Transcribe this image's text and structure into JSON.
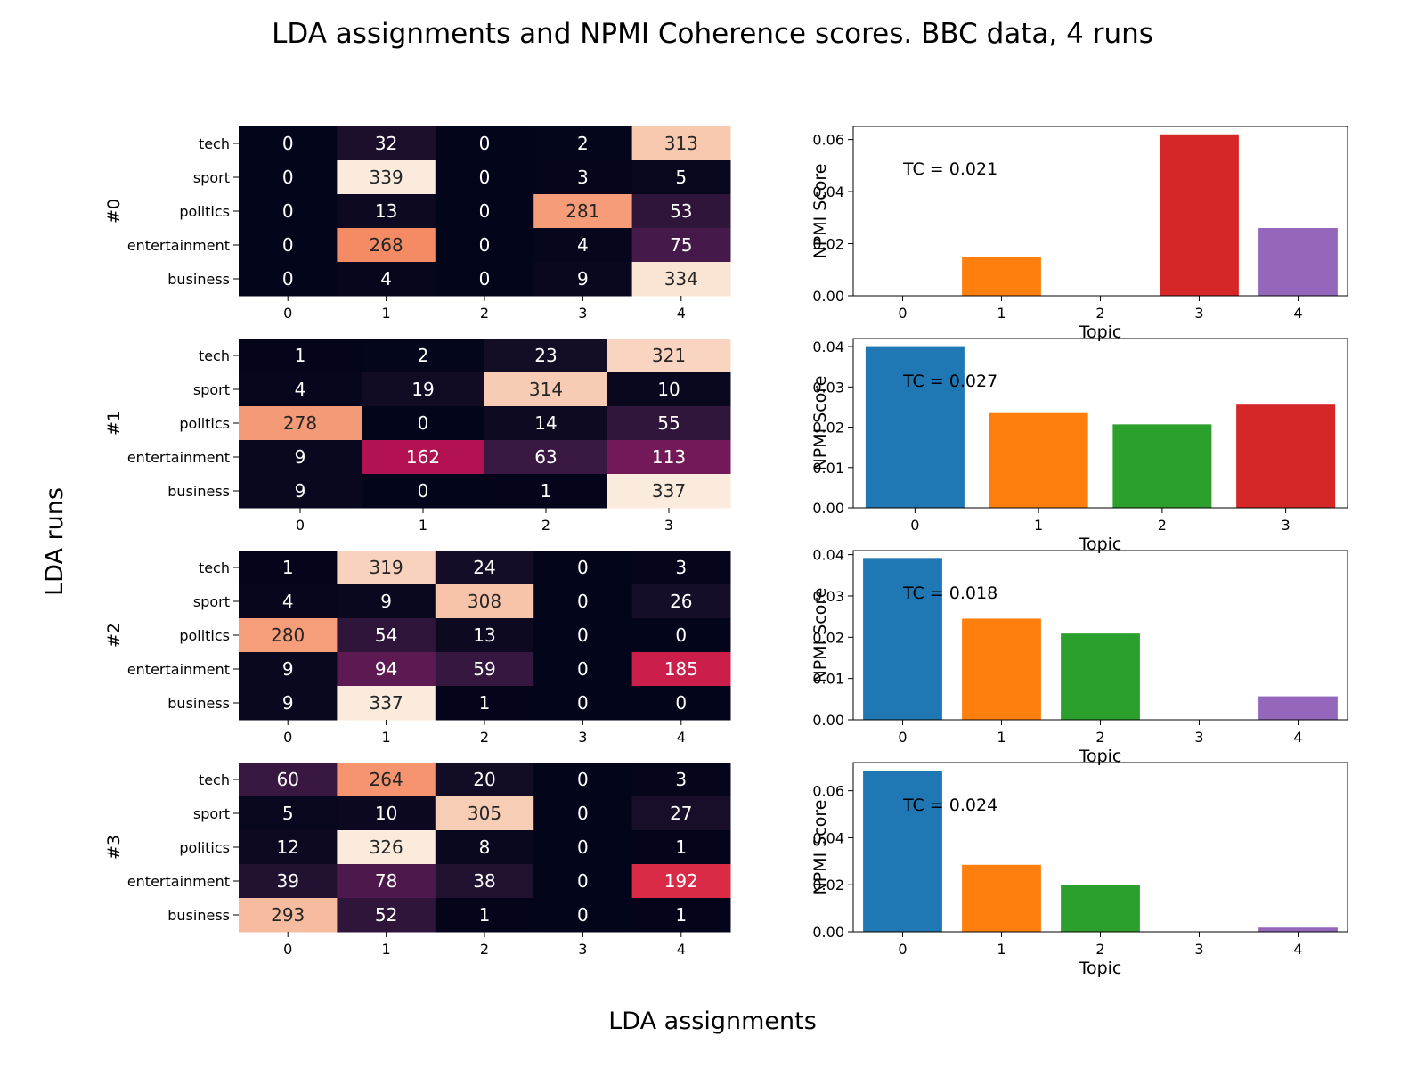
{
  "figure": {
    "title": "LDA assignments and NPMI Coherence scores. BBC data, 4 runs",
    "ylabel": "LDA runs",
    "xlabel": "LDA assignments"
  },
  "chart_data": [
    {
      "type": "heatmap",
      "run_label": "#0",
      "rows": [
        "tech",
        "sport",
        "politics",
        "entertainment",
        "business"
      ],
      "cols": [
        "0",
        "1",
        "2",
        "3",
        "4"
      ],
      "values": [
        [
          0,
          32,
          0,
          2,
          313
        ],
        [
          0,
          339,
          0,
          3,
          5
        ],
        [
          0,
          13,
          0,
          281,
          53
        ],
        [
          0,
          268,
          0,
          4,
          75
        ],
        [
          0,
          4,
          0,
          9,
          334
        ]
      ],
      "colormap": "rocket"
    },
    {
      "type": "bar",
      "categories": [
        "0",
        "1",
        "2",
        "3",
        "4"
      ],
      "values": [
        0.0,
        0.015,
        0.0,
        0.062,
        0.026
      ],
      "xlabel": "Topic",
      "ylabel": "NPMI Score",
      "ylim": [
        0,
        0.065
      ],
      "yticks": [
        "0.00",
        "0.02",
        "0.04",
        "0.06"
      ],
      "annotation": "TC = 0.021",
      "colors": [
        "#1f77b4",
        "#ff7f0e",
        "#2ca02c",
        "#d62728",
        "#9467bd"
      ]
    },
    {
      "type": "heatmap",
      "run_label": "#1",
      "rows": [
        "tech",
        "sport",
        "politics",
        "entertainment",
        "business"
      ],
      "cols": [
        "0",
        "1",
        "2",
        "3"
      ],
      "values": [
        [
          1,
          2,
          23,
          321
        ],
        [
          4,
          19,
          314,
          10
        ],
        [
          278,
          0,
          14,
          55
        ],
        [
          9,
          162,
          63,
          113
        ],
        [
          9,
          0,
          1,
          337
        ]
      ],
      "colormap": "rocket"
    },
    {
      "type": "bar",
      "categories": [
        "0",
        "1",
        "2",
        "3"
      ],
      "values": [
        0.0401,
        0.0235,
        0.0207,
        0.0256
      ],
      "xlabel": "Topic",
      "ylabel": "NPMI Score",
      "ylim": [
        0,
        0.042
      ],
      "yticks": [
        "0.00",
        "0.01",
        "0.02",
        "0.03",
        "0.04"
      ],
      "annotation": "TC = 0.027",
      "colors": [
        "#1f77b4",
        "#ff7f0e",
        "#2ca02c",
        "#d62728"
      ]
    },
    {
      "type": "heatmap",
      "run_label": "#2",
      "rows": [
        "tech",
        "sport",
        "politics",
        "entertainment",
        "business"
      ],
      "cols": [
        "0",
        "1",
        "2",
        "3",
        "4"
      ],
      "values": [
        [
          1,
          319,
          24,
          0,
          3
        ],
        [
          4,
          9,
          308,
          0,
          26
        ],
        [
          280,
          54,
          13,
          0,
          0
        ],
        [
          9,
          94,
          59,
          0,
          185
        ],
        [
          9,
          337,
          1,
          0,
          0
        ]
      ],
      "colormap": "rocket"
    },
    {
      "type": "bar",
      "categories": [
        "0",
        "1",
        "2",
        "3",
        "4"
      ],
      "values": [
        0.0392,
        0.0245,
        0.0209,
        0.0,
        0.0057
      ],
      "xlabel": "Topic",
      "ylabel": "NPMI Score",
      "ylim": [
        0,
        0.041
      ],
      "yticks": [
        "0.00",
        "0.01",
        "0.02",
        "0.03",
        "0.04"
      ],
      "annotation": "TC = 0.018",
      "colors": [
        "#1f77b4",
        "#ff7f0e",
        "#2ca02c",
        "#d62728",
        "#9467bd"
      ]
    },
    {
      "type": "heatmap",
      "run_label": "#3",
      "rows": [
        "tech",
        "sport",
        "politics",
        "entertainment",
        "business"
      ],
      "cols": [
        "0",
        "1",
        "2",
        "3",
        "4"
      ],
      "values": [
        [
          60,
          264,
          20,
          0,
          3
        ],
        [
          5,
          10,
          305,
          0,
          27
        ],
        [
          12,
          326,
          8,
          0,
          1
        ],
        [
          39,
          78,
          38,
          0,
          192
        ],
        [
          293,
          52,
          1,
          0,
          1
        ]
      ],
      "colormap": "rocket"
    },
    {
      "type": "bar",
      "categories": [
        "0",
        "1",
        "2",
        "3",
        "4"
      ],
      "values": [
        0.0685,
        0.0285,
        0.02,
        0.0,
        0.0018
      ],
      "xlabel": "Topic",
      "ylabel": "NPMI Score",
      "ylim": [
        0,
        0.072
      ],
      "yticks": [
        "0.00",
        "0.02",
        "0.04",
        "0.06"
      ],
      "annotation": "TC = 0.024",
      "colors": [
        "#1f77b4",
        "#ff7f0e",
        "#2ca02c",
        "#d62728",
        "#9467bd"
      ]
    }
  ]
}
